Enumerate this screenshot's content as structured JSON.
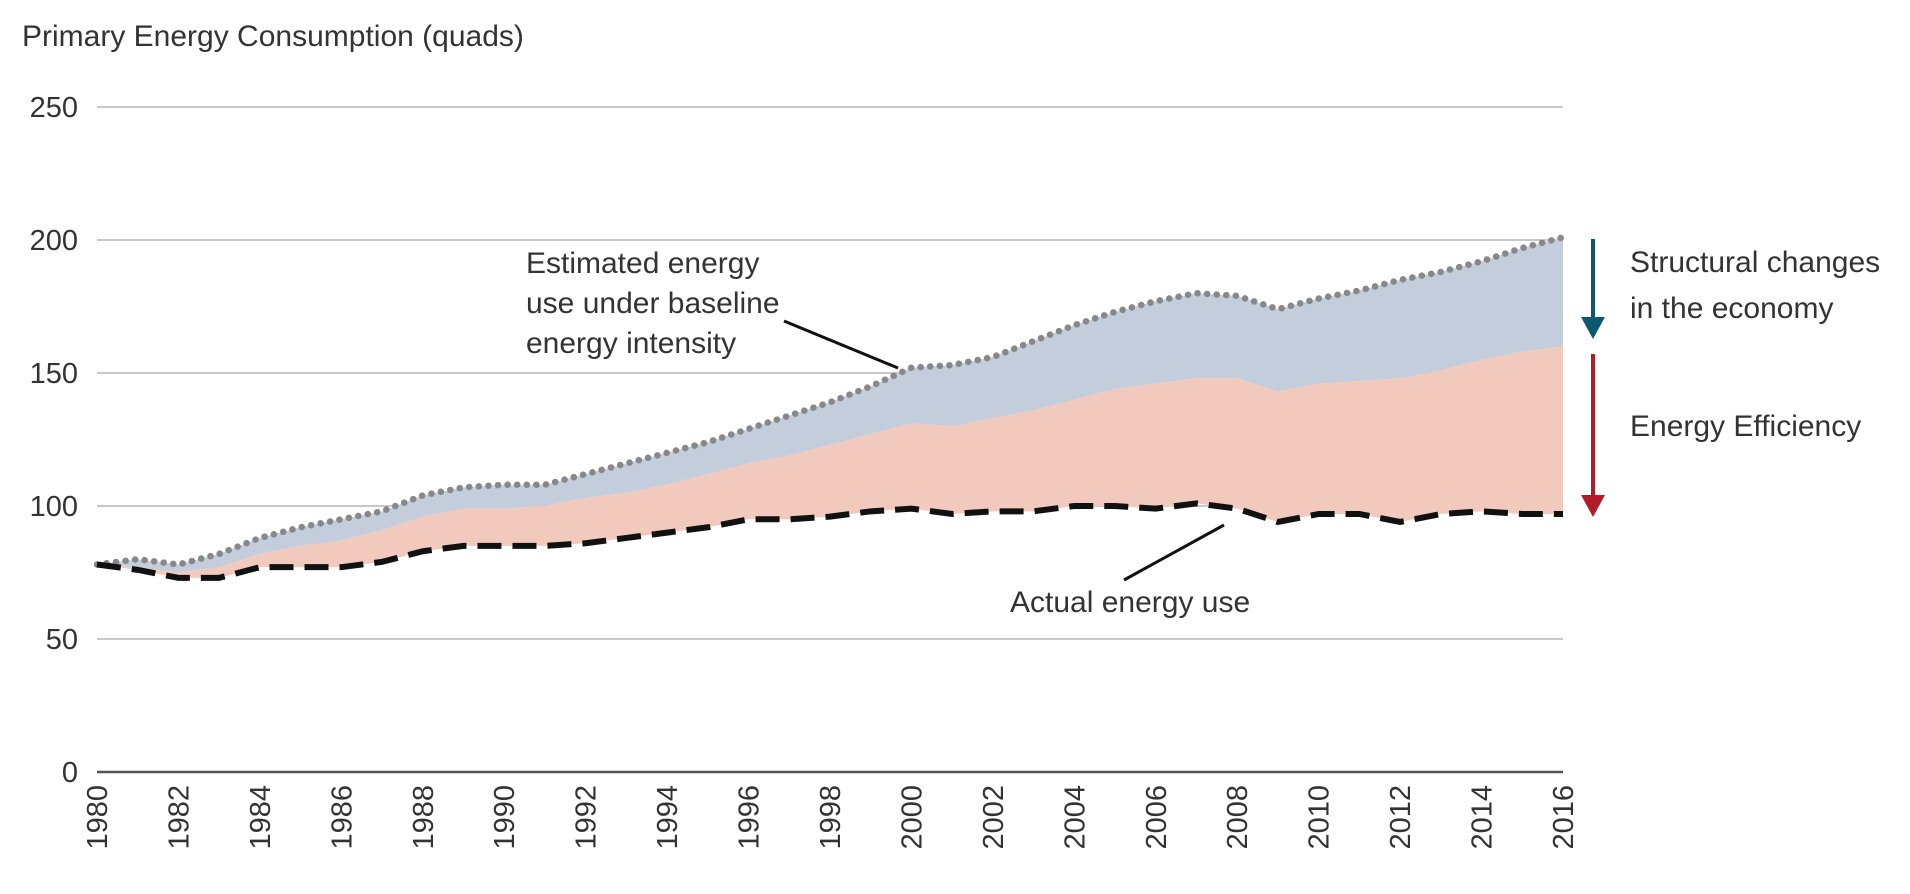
{
  "chart_data": {
    "type": "area",
    "title": "",
    "ylabel": "Primary Energy Consumption (quads)",
    "xlabel": "",
    "ylim": [
      0,
      250
    ],
    "yticks": [
      0,
      50,
      100,
      150,
      200,
      250
    ],
    "xlim": [
      1980,
      2016
    ],
    "xticks": [
      1980,
      1982,
      1984,
      1986,
      1988,
      1990,
      1992,
      1994,
      1996,
      1998,
      2000,
      2002,
      2004,
      2006,
      2008,
      2010,
      2012,
      2014,
      2016
    ],
    "grid": "horizontal",
    "x": [
      1980,
      1981,
      1982,
      1983,
      1984,
      1985,
      1986,
      1987,
      1988,
      1989,
      1990,
      1991,
      1992,
      1993,
      1994,
      1995,
      1996,
      1997,
      1998,
      1999,
      2000,
      2001,
      2002,
      2003,
      2004,
      2005,
      2006,
      2007,
      2008,
      2009,
      2010,
      2011,
      2012,
      2013,
      2014,
      2015,
      2016
    ],
    "series": [
      {
        "name": "Actual energy use",
        "style": "dashed",
        "color": "#111111",
        "values": [
          78,
          76,
          73,
          73,
          77,
          77,
          77,
          79,
          83,
          85,
          85,
          85,
          86,
          88,
          90,
          92,
          95,
          95,
          96,
          98,
          99,
          97,
          98,
          98,
          100,
          100,
          99,
          101,
          99,
          94,
          97,
          97,
          94,
          97,
          98,
          97,
          97
        ]
      },
      {
        "name": "",
        "style": "area-top",
        "color": "#f2c9bd",
        "values": [
          78,
          77,
          75,
          77,
          82,
          85,
          87,
          91,
          96,
          99,
          99,
          100,
          103,
          105,
          108,
          112,
          116,
          119,
          123,
          127,
          131,
          130,
          133,
          136,
          140,
          144,
          146,
          148,
          148,
          143,
          146,
          147,
          148,
          151,
          155,
          158,
          160
        ]
      },
      {
        "name": "Estimated energy use under baseline energy intensity",
        "style": "dotted",
        "color": "#888888",
        "values": [
          78,
          80,
          78,
          82,
          88,
          92,
          95,
          98,
          104,
          107,
          108,
          108,
          112,
          116,
          120,
          124,
          129,
          134,
          139,
          145,
          152,
          153,
          156,
          162,
          168,
          173,
          177,
          180,
          179,
          174,
          178,
          181,
          185,
          188,
          192,
          197,
          201
        ]
      }
    ],
    "annotations": {
      "baseline_label": [
        "Estimated energy",
        "use under baseline",
        "energy intensity"
      ],
      "actual_label": "Actual energy use",
      "structural_label": [
        "Structural changes",
        "in the economy"
      ],
      "efficiency_label": "Energy Efficiency"
    },
    "colors": {
      "structural_band": "#c3cddb",
      "efficiency_band": "#f2c9bd",
      "structural_arrow": "#0d5870",
      "efficiency_arrow": "#b31b2a",
      "gridline": "#a8a8a8"
    }
  }
}
